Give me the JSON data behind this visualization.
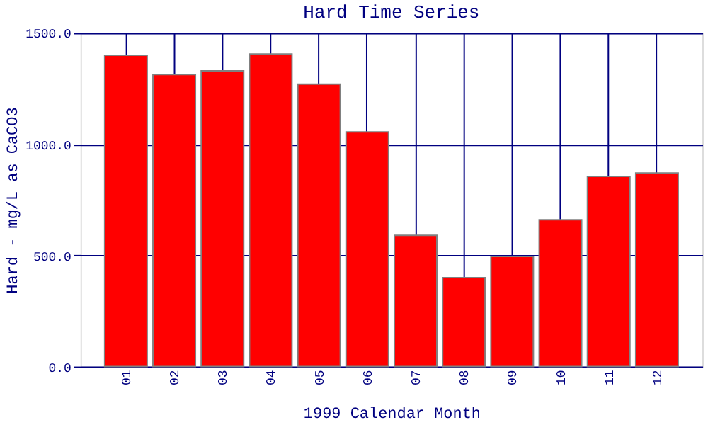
{
  "chart_data": {
    "type": "bar",
    "title": "Hard Time Series",
    "xlabel": "1999 Calendar Month",
    "ylabel": "Hard - mg/L as CaCO3",
    "categories": [
      "01",
      "02",
      "03",
      "04",
      "05",
      "06",
      "07",
      "08",
      "09",
      "10",
      "11",
      "12"
    ],
    "series": [
      {
        "color": "#ff0000",
        "values": [
          1400,
          1313,
          1330,
          1405,
          1270,
          1055,
          590,
          400,
          495,
          660,
          855,
          870
        ]
      }
    ],
    "ylim": [
      0,
      1500
    ],
    "yticks": [
      {
        "value": 0,
        "label": "0.0"
      },
      {
        "value": 500,
        "label": "500.0"
      },
      {
        "value": 1000,
        "label": "1000.0"
      },
      {
        "value": 1500,
        "label": "1500.0"
      }
    ],
    "grid": true
  }
}
